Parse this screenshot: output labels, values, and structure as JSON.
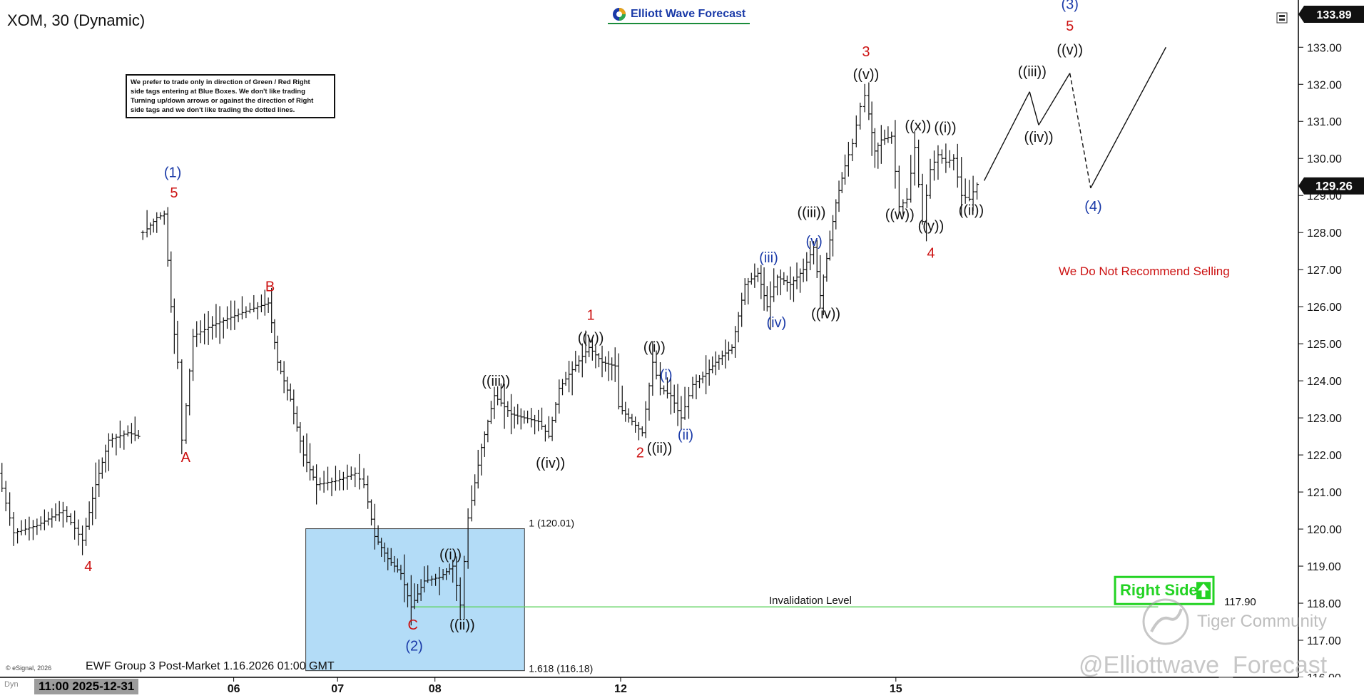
{
  "header": {
    "symbol_label": "XOM, 30 (Dynamic)",
    "brand": "Elliott Wave Forecast",
    "last_price": "129.26",
    "top_price": "133.89"
  },
  "notice": {
    "line1": "We prefer to trade only in direction of Green / Red Right",
    "line2": "side tags entering at Blue Boxes. We don't like trading",
    "line3": "Turning up/down arrows or against the direction of Right",
    "line4": "side tags and we don't like trading the dotted lines."
  },
  "footer": {
    "caption": "EWF Group 3 Post-Market 1.16.2026 01:00 GMT",
    "esignal": "© eSignal, 2026",
    "dyn": "Dyn",
    "cursor_date": "11:00 2025-12-31",
    "watermark1": "Tiger Community",
    "watermark2": "@Elliottwave_Forecast"
  },
  "colors": {
    "blue_box": "#b3dcf7",
    "blue_box_border": "#3a3a3a",
    "invalidation_line": "#5fd35f",
    "right_side": "#23d323",
    "red_label": "#cc1111",
    "blue_label": "#1a3aa8",
    "dark_label": "#111111"
  },
  "chart_data": {
    "type": "ohlc",
    "yaxis": {
      "min": 116,
      "max": 133.89,
      "ticks": [
        "133.00",
        "132.00",
        "131.00",
        "130.00",
        "129.00",
        "128.00",
        "127.00",
        "126.00",
        "125.00",
        "124.00",
        "123.00",
        "122.00",
        "121.00",
        "120.00",
        "119.00",
        "118.00",
        "117.00",
        "116.00"
      ]
    },
    "xaxis_labels": [
      {
        "label": "06",
        "x": 0.18
      },
      {
        "label": "07",
        "x": 0.26
      },
      {
        "label": "08",
        "x": 0.335
      },
      {
        "label": "12",
        "x": 0.478
      },
      {
        "label": "15",
        "x": 0.69
      }
    ],
    "price_path": [
      {
        "x": 0.0,
        "y": 121.5
      },
      {
        "x": 0.012,
        "y": 119.9
      },
      {
        "x": 0.03,
        "y": 120.1
      },
      {
        "x": 0.05,
        "y": 120.5
      },
      {
        "x": 0.065,
        "y": 119.7
      },
      {
        "x": 0.075,
        "y": 121.2
      },
      {
        "x": 0.085,
        "y": 122.4
      },
      {
        "x": 0.1,
        "y": 122.6
      },
      {
        "x": 0.108,
        "y": 122.5
      },
      {
        "x": 0.112,
        "y": 128.0
      },
      {
        "x": 0.122,
        "y": 128.4
      },
      {
        "x": 0.128,
        "y": 128.5
      },
      {
        "x": 0.133,
        "y": 126.0
      },
      {
        "x": 0.138,
        "y": 124.5
      },
      {
        "x": 0.142,
        "y": 122.4
      },
      {
        "x": 0.15,
        "y": 125.2
      },
      {
        "x": 0.165,
        "y": 125.5
      },
      {
        "x": 0.185,
        "y": 125.8
      },
      {
        "x": 0.2,
        "y": 126.0
      },
      {
        "x": 0.208,
        "y": 126.1
      },
      {
        "x": 0.215,
        "y": 124.5
      },
      {
        "x": 0.225,
        "y": 123.5
      },
      {
        "x": 0.235,
        "y": 122.0
      },
      {
        "x": 0.245,
        "y": 121.2
      },
      {
        "x": 0.26,
        "y": 121.3
      },
      {
        "x": 0.275,
        "y": 121.5
      },
      {
        "x": 0.282,
        "y": 121.2
      },
      {
        "x": 0.29,
        "y": 119.8
      },
      {
        "x": 0.3,
        "y": 119.2
      },
      {
        "x": 0.31,
        "y": 118.8
      },
      {
        "x": 0.318,
        "y": 117.9
      },
      {
        "x": 0.328,
        "y": 118.6
      },
      {
        "x": 0.34,
        "y": 118.7
      },
      {
        "x": 0.35,
        "y": 119.0
      },
      {
        "x": 0.356,
        "y": 117.95
      },
      {
        "x": 0.362,
        "y": 120.3
      },
      {
        "x": 0.372,
        "y": 122.2
      },
      {
        "x": 0.382,
        "y": 123.6
      },
      {
        "x": 0.395,
        "y": 123.1
      },
      {
        "x": 0.405,
        "y": 123.0
      },
      {
        "x": 0.416,
        "y": 122.9
      },
      {
        "x": 0.424,
        "y": 122.5
      },
      {
        "x": 0.432,
        "y": 123.8
      },
      {
        "x": 0.442,
        "y": 124.3
      },
      {
        "x": 0.455,
        "y": 124.9
      },
      {
        "x": 0.465,
        "y": 124.5
      },
      {
        "x": 0.475,
        "y": 124.4
      },
      {
        "x": 0.478,
        "y": 123.3
      },
      {
        "x": 0.488,
        "y": 122.9
      },
      {
        "x": 0.496,
        "y": 122.6
      },
      {
        "x": 0.504,
        "y": 124.5
      },
      {
        "x": 0.51,
        "y": 123.8
      },
      {
        "x": 0.518,
        "y": 123.6
      },
      {
        "x": 0.526,
        "y": 123.0
      },
      {
        "x": 0.535,
        "y": 123.9
      },
      {
        "x": 0.545,
        "y": 124.2
      },
      {
        "x": 0.555,
        "y": 124.6
      },
      {
        "x": 0.565,
        "y": 124.9
      },
      {
        "x": 0.575,
        "y": 126.6
      },
      {
        "x": 0.585,
        "y": 126.9
      },
      {
        "x": 0.592,
        "y": 126.0
      },
      {
        "x": 0.6,
        "y": 126.8
      },
      {
        "x": 0.61,
        "y": 126.6
      },
      {
        "x": 0.62,
        "y": 127.0
      },
      {
        "x": 0.628,
        "y": 127.6
      },
      {
        "x": 0.633,
        "y": 126.3
      },
      {
        "x": 0.638,
        "y": 127.3
      },
      {
        "x": 0.645,
        "y": 128.8
      },
      {
        "x": 0.652,
        "y": 129.8
      },
      {
        "x": 0.658,
        "y": 130.4
      },
      {
        "x": 0.664,
        "y": 131.4
      },
      {
        "x": 0.668,
        "y": 131.7
      },
      {
        "x": 0.675,
        "y": 130.2
      },
      {
        "x": 0.68,
        "y": 130.5
      },
      {
        "x": 0.688,
        "y": 130.6
      },
      {
        "x": 0.694,
        "y": 128.7
      },
      {
        "x": 0.7,
        "y": 128.9
      },
      {
        "x": 0.706,
        "y": 130.3
      },
      {
        "x": 0.712,
        "y": 128.3
      },
      {
        "x": 0.718,
        "y": 129.7
      },
      {
        "x": 0.724,
        "y": 130.1
      },
      {
        "x": 0.73,
        "y": 129.9
      },
      {
        "x": 0.736,
        "y": 130.0
      },
      {
        "x": 0.742,
        "y": 129.0
      },
      {
        "x": 0.748,
        "y": 128.9
      },
      {
        "x": 0.754,
        "y": 129.3
      }
    ],
    "projection": [
      {
        "x": 0.758,
        "y": 129.4
      },
      {
        "x": 0.793,
        "y": 131.8
      },
      {
        "x": 0.8,
        "y": 130.9
      },
      {
        "x": 0.824,
        "y": 132.3
      },
      {
        "x": 0.84,
        "y": 129.2
      },
      {
        "x": 0.898,
        "y": 133.0
      }
    ],
    "blue_box": {
      "top": 120.01,
      "bottom": 116.18
    },
    "fib_labels": {
      "top": "1 (120.01)",
      "bottom": "1.618 (116.18)"
    },
    "invalidation": {
      "value": 117.9,
      "label": "Invalidation Level",
      "price_label": "117.90"
    },
    "right_side_label": "Right Side",
    "recommendation": "We Do Not Recommend Selling",
    "wave_labels": [
      {
        "text": "4",
        "x": 0.068,
        "y": 119.0,
        "color": "red"
      },
      {
        "text": "(1)",
        "x": 0.133,
        "y": 129.63,
        "color": "blue"
      },
      {
        "text": "5",
        "x": 0.134,
        "y": 129.08,
        "color": "red"
      },
      {
        "text": "A",
        "x": 0.143,
        "y": 121.94,
        "color": "red"
      },
      {
        "text": "B",
        "x": 0.208,
        "y": 126.55,
        "color": "red"
      },
      {
        "text": "C",
        "x": 0.318,
        "y": 117.42,
        "color": "red"
      },
      {
        "text": "(2)",
        "x": 0.319,
        "y": 116.86,
        "color": "blue"
      },
      {
        "text": "((i))",
        "x": 0.347,
        "y": 119.32,
        "color": "dark"
      },
      {
        "text": "((ii))",
        "x": 0.356,
        "y": 117.42,
        "color": "dark"
      },
      {
        "text": "((iii))",
        "x": 0.382,
        "y": 124.0,
        "color": "dark"
      },
      {
        "text": "((iv))",
        "x": 0.424,
        "y": 121.79,
        "color": "dark"
      },
      {
        "text": "1",
        "x": 0.455,
        "y": 125.78,
        "color": "red"
      },
      {
        "text": "((v))",
        "x": 0.455,
        "y": 125.17,
        "color": "dark"
      },
      {
        "text": "((i))",
        "x": 0.504,
        "y": 124.92,
        "color": "dark"
      },
      {
        "text": "(i)",
        "x": 0.513,
        "y": 124.17,
        "color": "blue"
      },
      {
        "text": "2",
        "x": 0.493,
        "y": 122.07,
        "color": "red"
      },
      {
        "text": "((ii))",
        "x": 0.508,
        "y": 122.19,
        "color": "dark"
      },
      {
        "text": "(ii)",
        "x": 0.528,
        "y": 122.55,
        "color": "blue"
      },
      {
        "text": "(iii)",
        "x": 0.592,
        "y": 127.33,
        "color": "blue"
      },
      {
        "text": "(iv)",
        "x": 0.598,
        "y": 125.58,
        "color": "blue"
      },
      {
        "text": "((iii))",
        "x": 0.625,
        "y": 128.55,
        "color": "dark"
      },
      {
        "text": "(v)",
        "x": 0.627,
        "y": 127.77,
        "color": "blue"
      },
      {
        "text": "((iv))",
        "x": 0.636,
        "y": 125.82,
        "color": "dark"
      },
      {
        "text": "3",
        "x": 0.667,
        "y": 132.89,
        "color": "red"
      },
      {
        "text": "((v))",
        "x": 0.667,
        "y": 132.27,
        "color": "dark"
      },
      {
        "text": "((x))",
        "x": 0.707,
        "y": 130.89,
        "color": "dark"
      },
      {
        "text": "((i))",
        "x": 0.728,
        "y": 130.84,
        "color": "dark"
      },
      {
        "text": "((w))",
        "x": 0.693,
        "y": 128.49,
        "color": "dark"
      },
      {
        "text": "((y))",
        "x": 0.717,
        "y": 128.19,
        "color": "dark"
      },
      {
        "text": "4",
        "x": 0.717,
        "y": 127.46,
        "color": "red"
      },
      {
        "text": "((ii))",
        "x": 0.748,
        "y": 128.61,
        "color": "dark"
      },
      {
        "text": "((iii))",
        "x": 0.795,
        "y": 132.35,
        "color": "dark"
      },
      {
        "text": "((iv))",
        "x": 0.8,
        "y": 130.58,
        "color": "dark"
      },
      {
        "text": "(3)",
        "x": 0.824,
        "y": 134.17,
        "color": "blue"
      },
      {
        "text": "5",
        "x": 0.824,
        "y": 133.58,
        "color": "red"
      },
      {
        "text": "((v))",
        "x": 0.824,
        "y": 132.94,
        "color": "dark"
      },
      {
        "text": "(4)",
        "x": 0.842,
        "y": 128.72,
        "color": "blue"
      }
    ]
  }
}
